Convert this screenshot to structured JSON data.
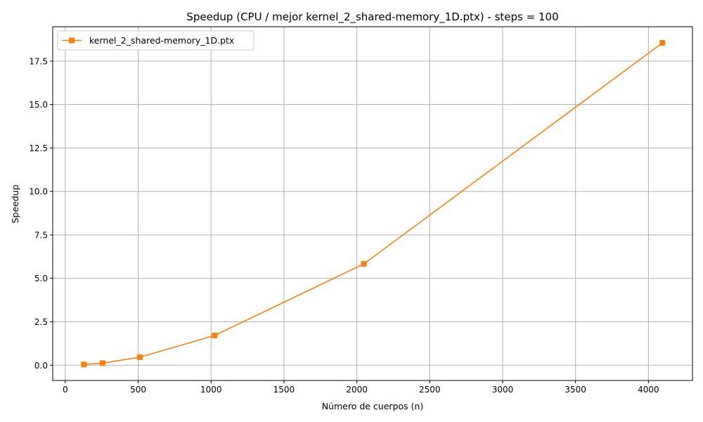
{
  "chart_data": {
    "type": "line",
    "title": "Speedup (CPU / mejor kernel_2_shared-memory_1D.ptx) - steps = 100",
    "xlabel": "Número de cuerpos (n)",
    "ylabel": "Speedup",
    "xlim": [
      -86,
      4302
    ],
    "ylim": [
      -0.88,
      19.48
    ],
    "x_ticks": [
      0,
      500,
      1000,
      1500,
      2000,
      2500,
      3000,
      3500,
      4000
    ],
    "x_tick_labels": [
      "0",
      "500",
      "1000",
      "1500",
      "2000",
      "2500",
      "3000",
      "3500",
      "4000"
    ],
    "y_ticks": [
      0.0,
      2.5,
      5.0,
      7.5,
      10.0,
      12.5,
      15.0,
      17.5
    ],
    "y_tick_labels": [
      "0.0",
      "2.5",
      "5.0",
      "7.5",
      "10.0",
      "12.5",
      "15.0",
      "17.5"
    ],
    "grid": true,
    "legend_position": "top-left",
    "series": [
      {
        "name": "kernel_2_shared-memory_1D.ptx",
        "color": "#ff7f0e",
        "marker": "square",
        "x": [
          128,
          256,
          512,
          1024,
          2048,
          4096
        ],
        "y": [
          0.04,
          0.12,
          0.46,
          1.71,
          5.83,
          18.55
        ]
      }
    ]
  }
}
